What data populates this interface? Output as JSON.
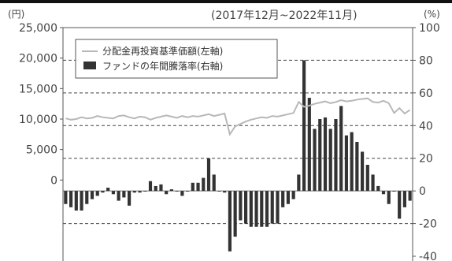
{
  "chart_data": {
    "type": "bar+line",
    "period": "(2017年12月~2022年11月)",
    "left_unit": "(円)",
    "right_unit": "(%)",
    "legend": [
      "分配金再投資基準価額(左軸)",
      "ファンドの年間騰落率(右軸)"
    ],
    "left_axis": {
      "ticks": [
        "25,000",
        "20,000",
        "15,000",
        "10,000",
        "5,000",
        "0"
      ],
      "ylim": [
        -12500,
        25000
      ]
    },
    "right_axis": {
      "ticks": [
        "100",
        "80",
        "60",
        "40",
        "20",
        "0",
        "-20",
        "-40"
      ],
      "ylim": [
        -40,
        100
      ]
    },
    "grid": "dashed horizontal",
    "colors": {
      "line": "#b8b8b8",
      "bar": "#333333",
      "axis": "#555555"
    },
    "series": [
      {
        "name": "ファンドの年間騰落率(右軸)",
        "type": "bar",
        "axis": "right",
        "values": [
          -8,
          -10,
          -12,
          -12,
          -8,
          -5,
          -3,
          -1,
          2,
          -2,
          -6,
          -4,
          -9,
          -1,
          -1,
          0,
          6,
          3,
          4,
          -2,
          1,
          0,
          -3,
          0,
          5,
          5,
          8,
          20,
          10,
          0,
          -1,
          -37,
          -28,
          -18,
          -20,
          -22,
          -22,
          -22,
          -22,
          -20,
          -20,
          -10,
          -8,
          -5,
          10,
          80,
          57,
          38,
          44,
          45,
          38,
          44,
          52,
          34,
          36,
          30,
          24,
          16,
          10,
          3,
          -2,
          -8,
          0,
          -17,
          -10,
          -6
        ]
      },
      {
        "name": "分配金再投資基準価額(左軸)",
        "type": "line",
        "axis": "left",
        "values": [
          10100,
          9900,
          10000,
          10300,
          10100,
          10200,
          10500,
          10300,
          10200,
          10100,
          10500,
          10600,
          10300,
          10100,
          10400,
          10300,
          9900,
          10200,
          10400,
          10600,
          10400,
          10200,
          10500,
          10300,
          10500,
          10400,
          10600,
          10800,
          10500,
          10700,
          10900,
          7500,
          8800,
          9200,
          9600,
          9900,
          10100,
          10300,
          10200,
          10500,
          10400,
          10600,
          10800,
          11000,
          12800,
          12000,
          12200,
          12500,
          12700,
          12900,
          12600,
          12800,
          13100,
          12900,
          13000,
          13200,
          13300,
          13400,
          12800,
          12700,
          13000,
          12600,
          11000,
          11800,
          10900,
          11500
        ]
      }
    ]
  }
}
